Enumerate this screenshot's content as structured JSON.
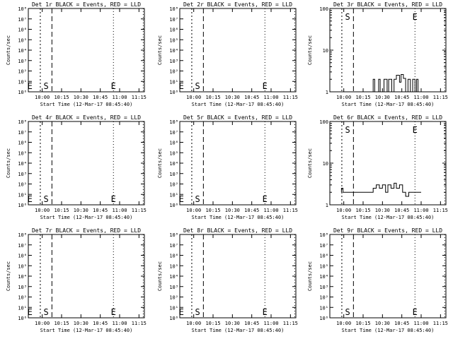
{
  "figure": {
    "xlabel": "Start Time (12-Mar-17 08:45:40)",
    "ylabel": "Counts/sec",
    "x_tick_labels": [
      "10:00",
      "10:15",
      "10:30",
      "10:45",
      "11:00",
      "11:15"
    ]
  },
  "chart_data": [
    {
      "type": "line",
      "title": "Det 1r BLACK = Events, RED = LLD",
      "scale": "log",
      "ylim": [
        1,
        100000000.0
      ],
      "y_tick_labels": [
        "10⁰",
        "10¹",
        "10²",
        "10³",
        "10⁴",
        "10⁵",
        "10⁶",
        "10⁷",
        "10⁸"
      ],
      "markers": [
        "E",
        "S",
        "E"
      ],
      "series": []
    },
    {
      "type": "line",
      "title": "Det 2r BLACK = Events, RED = LLD",
      "scale": "log",
      "ylim": [
        1,
        100000000.0
      ],
      "y_tick_labels": [
        "10⁰",
        "10¹",
        "10²",
        "10³",
        "10⁴",
        "10⁵",
        "10⁶",
        "10⁷",
        "10⁸"
      ],
      "markers": [
        "E",
        "S",
        "E"
      ],
      "series": []
    },
    {
      "type": "line",
      "title": "Det 3r BLACK = Events, RED = LLD",
      "scale": "log",
      "ylim": [
        1,
        100
      ],
      "y_tick_labels": [
        "1",
        "10",
        "100"
      ],
      "markers": [
        "S",
        "E"
      ],
      "series": [
        {
          "values": [
            [
              10.38,
              1
            ],
            [
              10.38,
              2
            ],
            [
              10.4,
              2
            ],
            [
              10.4,
              1
            ],
            [
              10.45,
              1
            ],
            [
              10.45,
              2
            ],
            [
              10.47,
              2
            ],
            [
              10.47,
              1
            ],
            [
              10.52,
              1
            ],
            [
              10.52,
              2
            ],
            [
              10.56,
              2
            ],
            [
              10.56,
              1
            ],
            [
              10.58,
              1
            ],
            [
              10.58,
              2
            ],
            [
              10.62,
              2
            ],
            [
              10.62,
              1
            ],
            [
              10.65,
              1
            ],
            [
              10.65,
              2
            ],
            [
              10.68,
              2
            ],
            [
              10.68,
              2.5
            ],
            [
              10.72,
              2.5
            ],
            [
              10.72,
              1.7
            ],
            [
              10.74,
              1.7
            ],
            [
              10.74,
              2.6
            ],
            [
              10.77,
              2.6
            ],
            [
              10.77,
              2.1
            ],
            [
              10.8,
              2.1
            ],
            [
              10.8,
              1
            ],
            [
              10.83,
              1
            ],
            [
              10.83,
              2
            ],
            [
              10.86,
              2
            ],
            [
              10.86,
              1
            ],
            [
              10.89,
              1
            ],
            [
              10.89,
              2
            ],
            [
              10.92,
              2
            ],
            [
              10.92,
              1
            ],
            [
              10.94,
              1
            ],
            [
              10.94,
              2
            ],
            [
              10.96,
              2
            ],
            [
              10.96,
              1
            ],
            [
              11.0,
              1
            ]
          ]
        }
      ]
    },
    {
      "type": "line",
      "title": "Det 4r BLACK = Events, RED = LLD",
      "scale": "log",
      "ylim": [
        1,
        100000000.0
      ],
      "y_tick_labels": [
        "10⁰",
        "10¹",
        "10²",
        "10³",
        "10⁴",
        "10⁵",
        "10⁶",
        "10⁷",
        "10⁸"
      ],
      "markers": [
        "E",
        "S",
        "E"
      ],
      "series": []
    },
    {
      "type": "line",
      "title": "Det 5r BLACK = Events, RED = LLD",
      "scale": "log",
      "ylim": [
        1,
        100000000.0
      ],
      "y_tick_labels": [
        "10⁰",
        "10¹",
        "10²",
        "10³",
        "10⁴",
        "10⁵",
        "10⁶",
        "10⁷",
        "10⁸"
      ],
      "markers": [
        "E",
        "S",
        "E"
      ],
      "series": []
    },
    {
      "type": "line",
      "title": "Det 6r BLACK = Events, RED = LLD",
      "scale": "log",
      "ylim": [
        1,
        100
      ],
      "y_tick_labels": [
        "1",
        "10",
        "100"
      ],
      "markers": [
        "S",
        "E"
      ],
      "series": [
        {
          "values": [
            [
              9.97,
              2
            ],
            [
              9.97,
              2.5
            ],
            [
              9.99,
              2.5
            ],
            [
              9.99,
              2
            ],
            [
              10.38,
              2
            ],
            [
              10.38,
              2.5
            ],
            [
              10.42,
              2.5
            ],
            [
              10.42,
              3
            ],
            [
              10.46,
              3
            ],
            [
              10.46,
              2.5
            ],
            [
              10.5,
              2.5
            ],
            [
              10.5,
              3
            ],
            [
              10.54,
              3
            ],
            [
              10.54,
              2
            ],
            [
              10.57,
              2
            ],
            [
              10.57,
              3
            ],
            [
              10.61,
              3
            ],
            [
              10.61,
              2.5
            ],
            [
              10.65,
              2.5
            ],
            [
              10.65,
              3.3
            ],
            [
              10.68,
              3.3
            ],
            [
              10.68,
              2.5
            ],
            [
              10.72,
              2.5
            ],
            [
              10.72,
              3
            ],
            [
              10.76,
              3
            ],
            [
              10.76,
              2
            ],
            [
              10.8,
              2
            ],
            [
              10.8,
              1.6
            ],
            [
              10.84,
              1.6
            ],
            [
              10.84,
              2
            ],
            [
              11.0,
              2
            ]
          ]
        }
      ]
    },
    {
      "type": "line",
      "title": "Det 7r BLACK = Events, RED = LLD",
      "scale": "log",
      "ylim": [
        1,
        100000000.0
      ],
      "y_tick_labels": [
        "10⁰",
        "10¹",
        "10²",
        "10³",
        "10⁴",
        "10⁵",
        "10⁶",
        "10⁷",
        "10⁸"
      ],
      "markers": [
        "E",
        "S",
        "E"
      ],
      "series": []
    },
    {
      "type": "line",
      "title": "Det 8r BLACK = Events, RED = LLD",
      "scale": "log",
      "ylim": [
        1,
        100000000.0
      ],
      "y_tick_labels": [
        "10⁰",
        "10¹",
        "10²",
        "10³",
        "10⁴",
        "10⁵",
        "10⁶",
        "10⁷",
        "10⁸"
      ],
      "markers": [
        "E",
        "S",
        "E"
      ],
      "series": []
    },
    {
      "type": "line",
      "title": "Det 9r BLACK = Events, RED = LLD",
      "scale": "log",
      "ylim": [
        1,
        100000000.0
      ],
      "y_tick_labels": [
        "10⁰",
        "10¹",
        "10²",
        "10³",
        "10⁴",
        "10⁵",
        "10⁶",
        "10⁷",
        "10⁸"
      ],
      "markers": [
        "S",
        "E"
      ],
      "series": []
    }
  ]
}
